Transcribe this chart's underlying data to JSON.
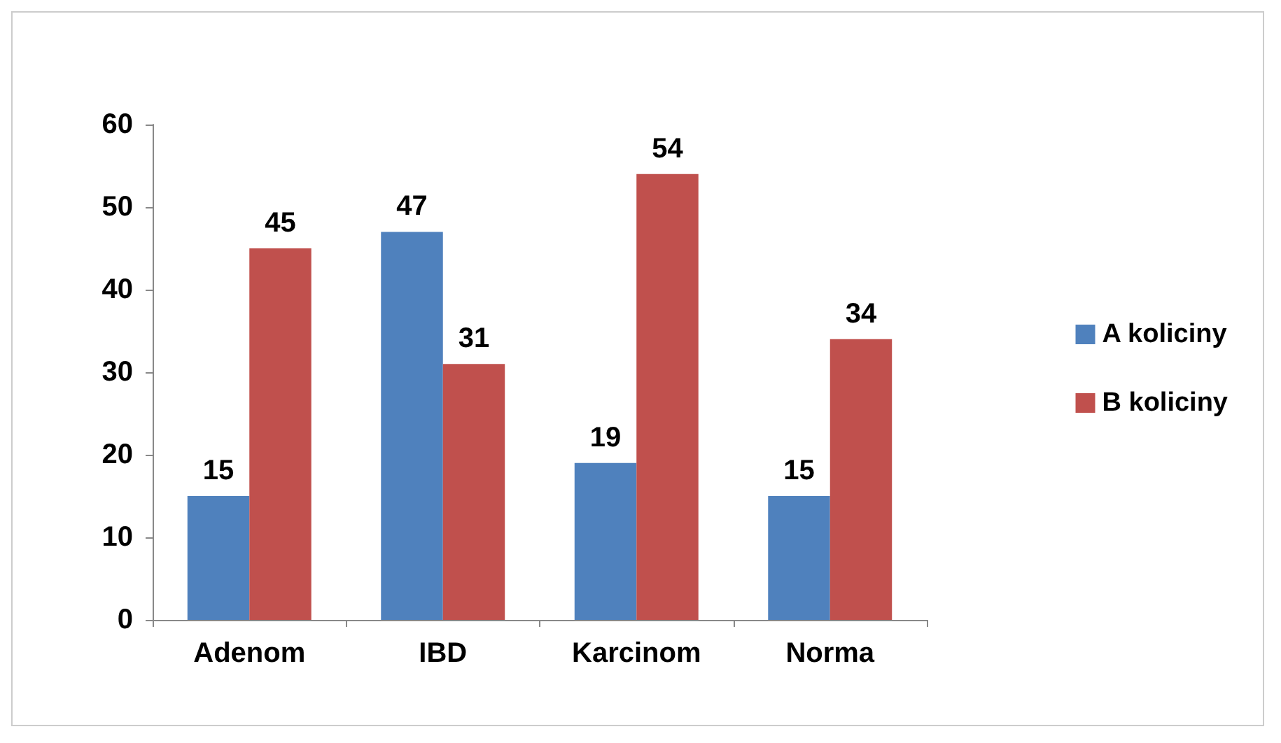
{
  "chart_data": {
    "type": "bar",
    "categories": [
      "Adenom",
      "IBD",
      "Karcinom",
      "Norma"
    ],
    "series": [
      {
        "name": "A koliciny",
        "color": "#4f81bd",
        "values": [
          15,
          47,
          19,
          15
        ]
      },
      {
        "name": "B koliciny",
        "color": "#c0504d",
        "values": [
          45,
          31,
          54,
          34
        ]
      }
    ],
    "ylim": [
      0,
      60
    ],
    "yticks": [
      0,
      10,
      20,
      30,
      40,
      50,
      60
    ],
    "grid": false,
    "legend": "right",
    "data_labels": true
  }
}
